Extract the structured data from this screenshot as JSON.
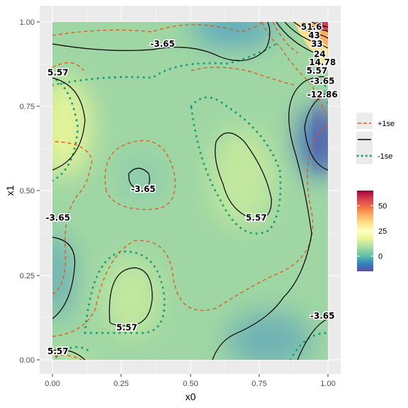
{
  "chart_data": {
    "type": "heatmap",
    "subtype": "filled-contour",
    "xlabel": "x0",
    "ylabel": "x1",
    "xlim": [
      0,
      1
    ],
    "ylim": [
      0,
      1
    ],
    "x_ticks": [
      "0.00",
      "0.25",
      "0.50",
      "0.75",
      "1.00"
    ],
    "y_ticks": [
      "0.00",
      "0.25",
      "0.50",
      "0.75",
      "1.00"
    ],
    "grid": true,
    "panel_background": "#ebebeb",
    "contour_labels": [
      {
        "text": "-3.65",
        "x": 0.4,
        "y": 0.935
      },
      {
        "text": "5.57",
        "x": 0.02,
        "y": 0.85
      },
      {
        "text": "-3.65",
        "x": 0.33,
        "y": 0.505
      },
      {
        "text": "5.57",
        "x": 0.74,
        "y": 0.42
      },
      {
        "text": "-3.65",
        "x": 0.02,
        "y": 0.42
      },
      {
        "text": "5.57",
        "x": 0.27,
        "y": 0.095
      },
      {
        "text": "5.57",
        "x": 0.02,
        "y": 0.025
      },
      {
        "text": "-3.65",
        "x": 0.98,
        "y": 0.13
      },
      {
        "text": "5.57",
        "x": 0.96,
        "y": 0.855
      },
      {
        "text": "-3.65",
        "x": 0.98,
        "y": 0.825
      },
      {
        "text": "-12.86",
        "x": 0.98,
        "y": 0.785
      },
      {
        "text": "14.78",
        "x": 0.98,
        "y": 0.88
      },
      {
        "text": "24",
        "x": 0.97,
        "y": 0.905
      },
      {
        "text": "33",
        "x": 0.96,
        "y": 0.935
      },
      {
        "text": "43",
        "x": 0.95,
        "y": 0.96
      },
      {
        "text": "51.6",
        "x": 0.94,
        "y": 0.985
      }
    ],
    "line_legend": [
      {
        "label": "+1se",
        "style": "dashed",
        "color": "#e6550d"
      },
      {
        "label": "",
        "style": "solid",
        "color": "#000000"
      },
      {
        "label": "-1se",
        "style": "dotted",
        "color": "#1b9e77"
      }
    ],
    "colorbar": {
      "ticks": [
        {
          "label": "50",
          "value": 50
        },
        {
          "label": "25",
          "value": 25
        },
        {
          "label": "0",
          "value": 0
        }
      ],
      "min": -15,
      "max": 65,
      "colors": [
        "#5e4fa2",
        "#3288bd",
        "#66c2a5",
        "#abdda4",
        "#e6f598",
        "#ffffbf",
        "#fee08b",
        "#fdae61",
        "#f46d43",
        "#d53e4f",
        "#9e0142"
      ]
    },
    "colors": {
      "plus_1se": "#e6550d",
      "estimate": "#000000",
      "minus_1se": "#1b9e77"
    }
  }
}
